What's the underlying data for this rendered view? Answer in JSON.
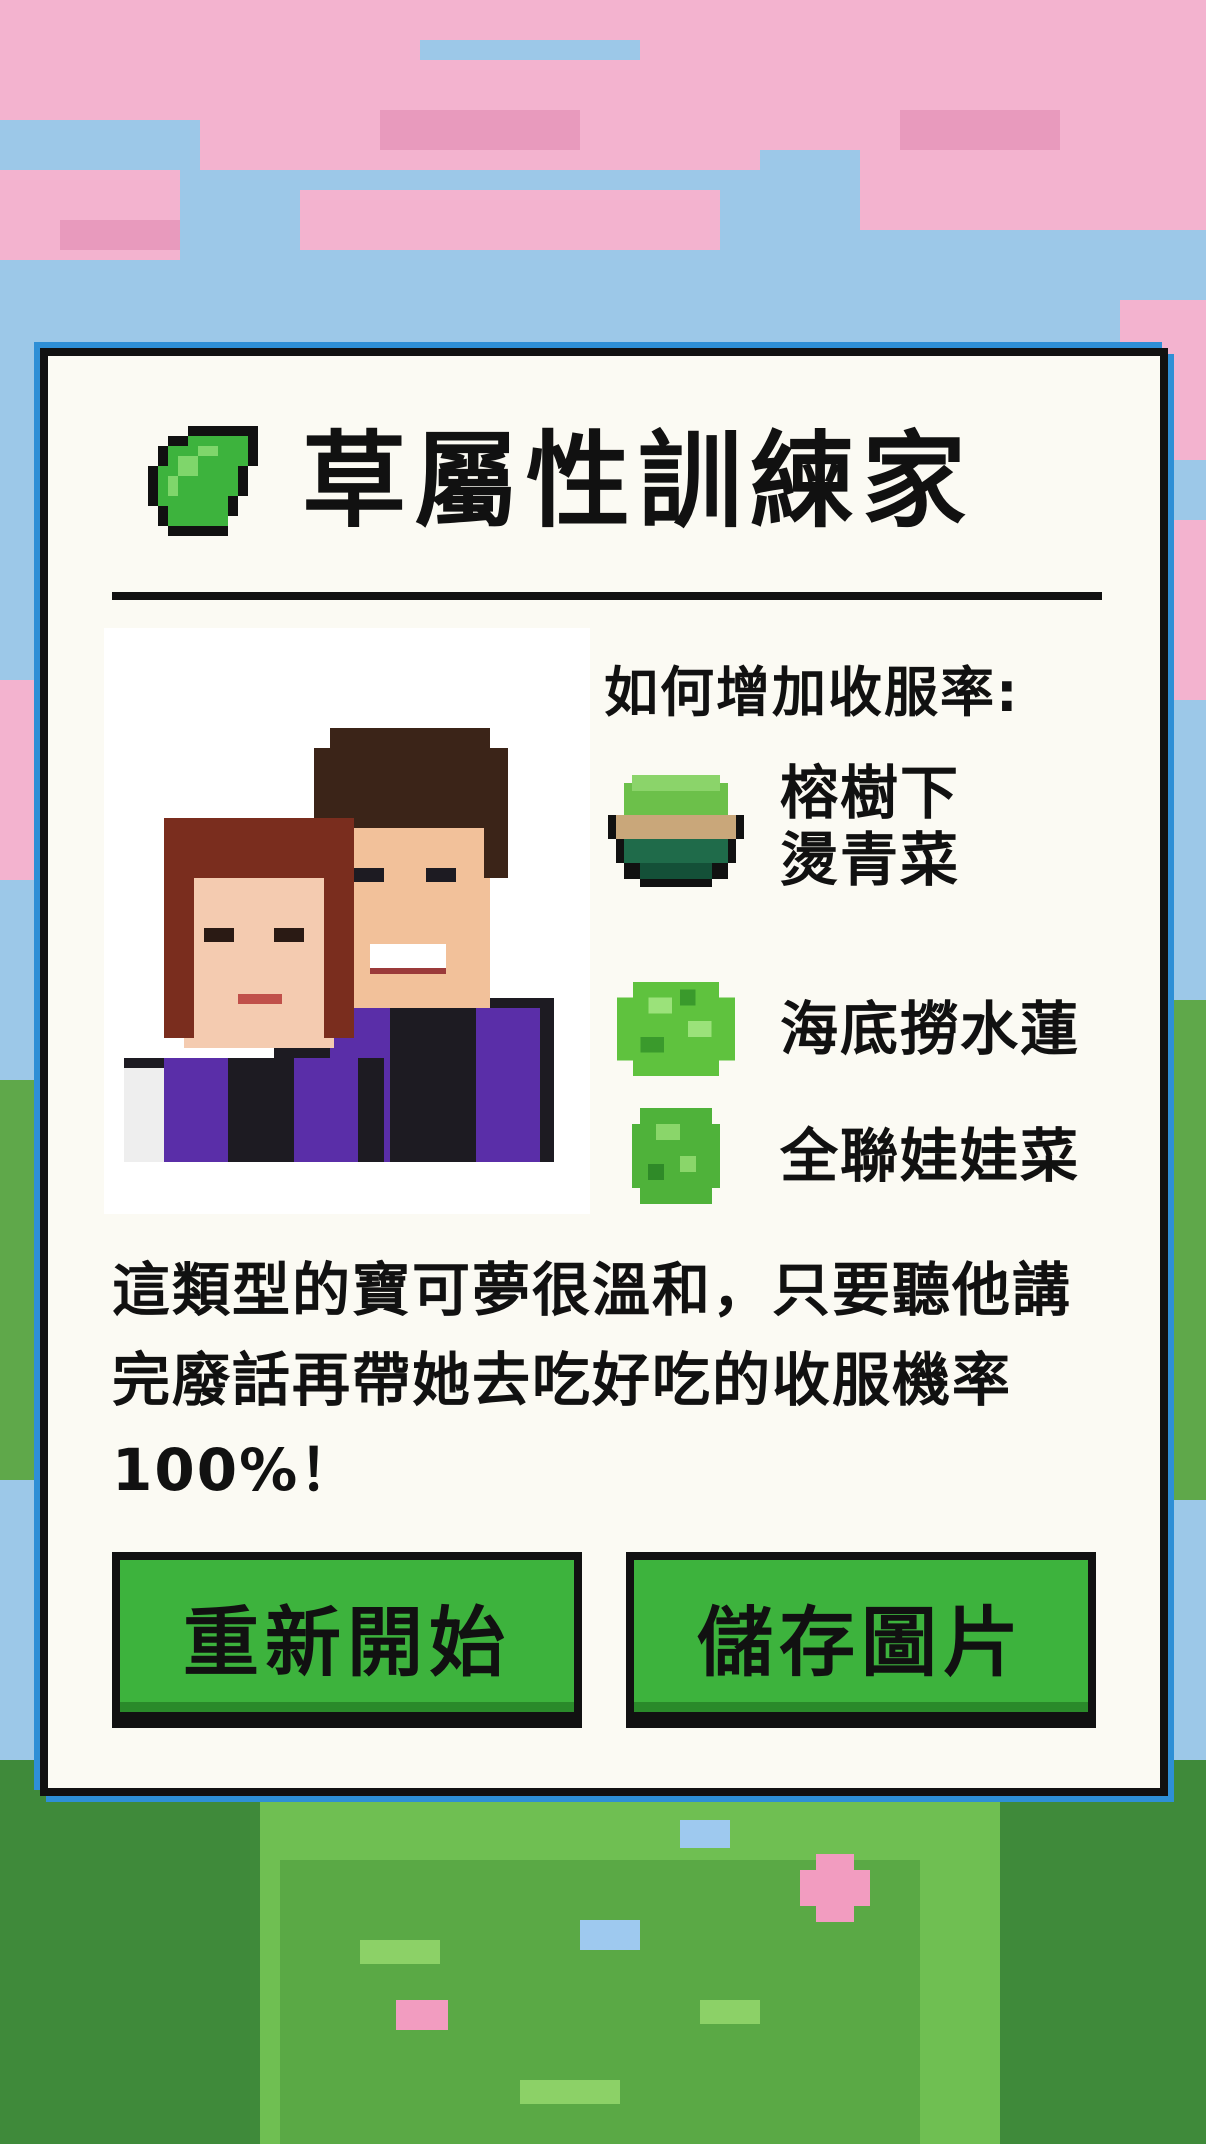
{
  "card": {
    "title": "草屬性訓練家",
    "tips_title": "如何增加收服率:",
    "tips": [
      {
        "label": "榕樹下\n燙青菜",
        "icon": "vegetable-bowl-icon"
      },
      {
        "label": "海底撈水蓮",
        "icon": "lettuce-leaves-icon"
      },
      {
        "label": "全聯娃娃菜",
        "icon": "cabbage-icon"
      }
    ],
    "description": "這類型的寶可夢很溫和，只要聽他講完廢話再帶她去吃好吃的收服機率100%！",
    "buttons": {
      "restart": "重新開始",
      "save": "儲存圖片"
    }
  },
  "colors": {
    "button_green": "#3db33d",
    "card_bg": "#fbfaf3",
    "border": "#111111",
    "accent_blue": "#2e8fd6"
  }
}
